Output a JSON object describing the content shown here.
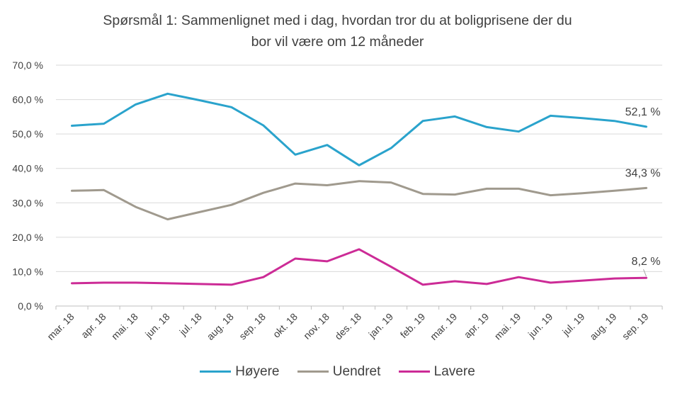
{
  "chart_data": {
    "type": "line",
    "title_lines": [
      "Spørsmål 1: Sammenlignet  med i dag, hvordan tror du at boligprisene  der du",
      "bor vil være om 12 måneder"
    ],
    "categories": [
      "mar. 18",
      "apr. 18",
      "mai. 18",
      "jun. 18",
      "jul. 18",
      "aug. 18",
      "sep. 18",
      "okt. 18",
      "nov. 18",
      "des. 18",
      "jan. 19",
      "feb. 19",
      "mar. 19",
      "apr. 19",
      "mai. 19",
      "jun. 19",
      "jul. 19",
      "aug. 19",
      "sep. 19"
    ],
    "y_ticks": [
      "0,0 %",
      "10,0 %",
      "20,0 %",
      "30,0 %",
      "40,0 %",
      "50,0 %",
      "60,0 %",
      "70,0 %"
    ],
    "ylim": [
      0,
      70
    ],
    "grid": true,
    "legend_position": "bottom",
    "series": [
      {
        "name": "Høyere",
        "color": "#2aa3cc",
        "values": [
          52.4,
          53.0,
          58.6,
          61.7,
          59.8,
          57.8,
          52.5,
          44.0,
          46.8,
          40.9,
          45.9,
          53.8,
          55.1,
          52.0,
          50.7,
          55.3,
          54.6,
          53.8,
          52.1
        ],
        "end_label": "52,1 %"
      },
      {
        "name": "Uendret",
        "color": "#a09a8e",
        "values": [
          33.5,
          33.7,
          28.8,
          25.2,
          27.3,
          29.4,
          32.9,
          35.6,
          35.1,
          36.3,
          35.9,
          32.6,
          32.4,
          34.1,
          34.1,
          32.2,
          32.8,
          33.5,
          34.3
        ],
        "end_label": "34,3 %"
      },
      {
        "name": "Lavere",
        "color": "#cc2b96",
        "values": [
          6.6,
          6.8,
          6.8,
          6.6,
          6.4,
          6.2,
          8.4,
          13.8,
          13.0,
          16.5,
          11.4,
          6.2,
          7.2,
          6.4,
          8.4,
          6.8,
          7.4,
          8.0,
          8.2
        ],
        "end_label": "8,2 %"
      }
    ]
  }
}
